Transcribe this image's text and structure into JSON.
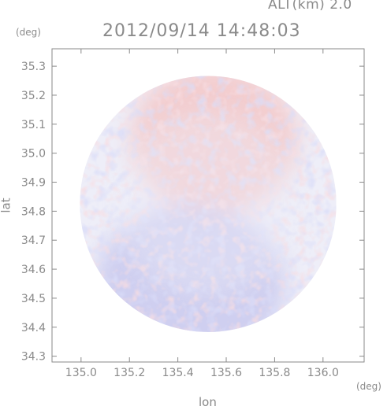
{
  "header": {
    "altitude": "ALT(km) 2.0",
    "datetime": "2012/09/14 14:48:03"
  },
  "chart_data": {
    "type": "heatmap",
    "title": "2012/09/14 14:48:03",
    "subtitle": "ALT(km) 2.0",
    "xlabel": "lon",
    "ylabel": "lat",
    "x_unit": "(deg)",
    "y_unit": "(deg)",
    "xlim": [
      134.88,
      136.17
    ],
    "ylim": [
      34.28,
      35.36
    ],
    "x_ticks": [
      "135.0",
      "135.2",
      "135.4",
      "135.6",
      "135.8",
      "136.0"
    ],
    "y_ticks": [
      "34.3",
      "34.4",
      "34.5",
      "34.6",
      "34.7",
      "34.8",
      "34.9",
      "35.0",
      "35.1",
      "35.2",
      "35.3"
    ],
    "domain": {
      "shape": "circle",
      "center_lon": 135.525,
      "center_lat": 34.825,
      "radius_deg": 0.53
    },
    "colors": {
      "positive": "#f4c8c8",
      "negative": "#c9c9ef",
      "neutral": "#eeeef8",
      "axis": "#8a8a8a"
    },
    "regions": [
      {
        "label": "north-positive",
        "lon": 135.55,
        "lat": 35.05,
        "sign": "positive"
      },
      {
        "label": "south-negative",
        "lon": 135.45,
        "lat": 34.55,
        "sign": "negative"
      }
    ],
    "grid": false,
    "legend": "none"
  }
}
